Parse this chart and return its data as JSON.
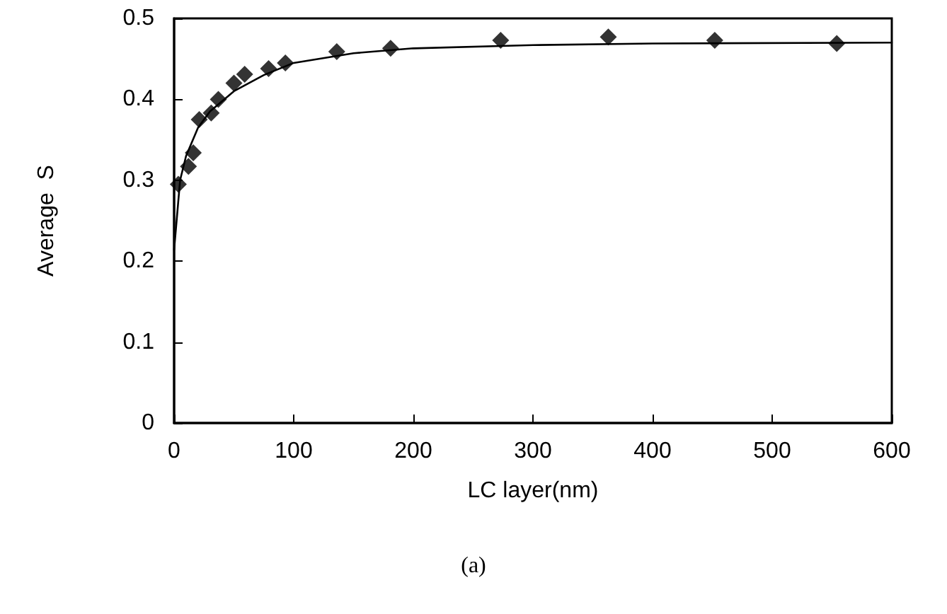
{
  "chart_data": {
    "type": "scatter",
    "xlabel": "LC layer(nm)",
    "ylabel": "Average  S",
    "annotations": [
      "(a)"
    ],
    "series": [
      {
        "color": "#000000",
        "marker": "diamond",
        "x": [
          3.5,
          12,
          16,
          21,
          31,
          37,
          50,
          59,
          79,
          93,
          136,
          181,
          273,
          363,
          452,
          554
        ],
        "values": [
          0.295,
          0.317,
          0.334,
          0.375,
          0.383,
          0.4,
          0.42,
          0.431,
          0.438,
          0.445,
          0.459,
          0.463,
          0.473,
          0.477,
          0.473,
          0.469
        ]
      },
      {
        "type": "line",
        "color": "#000000",
        "marker": "none",
        "x": [
          0,
          5,
          10,
          20,
          30,
          50,
          75,
          100,
          150,
          200,
          300,
          400,
          600
        ],
        "values": [
          0.214,
          0.3,
          0.33,
          0.365,
          0.385,
          0.41,
          0.43,
          0.445,
          0.457,
          0.463,
          0.467,
          0.469,
          0.47
        ]
      }
    ],
    "xlim": [
      0,
      600
    ],
    "xticks": [
      0,
      100,
      200,
      300,
      400,
      500,
      600
    ],
    "ylim": [
      0,
      0.5
    ],
    "yticks": [
      0,
      0.1,
      0.2,
      0.3,
      0.4,
      0.5
    ],
    "grid": false
  }
}
